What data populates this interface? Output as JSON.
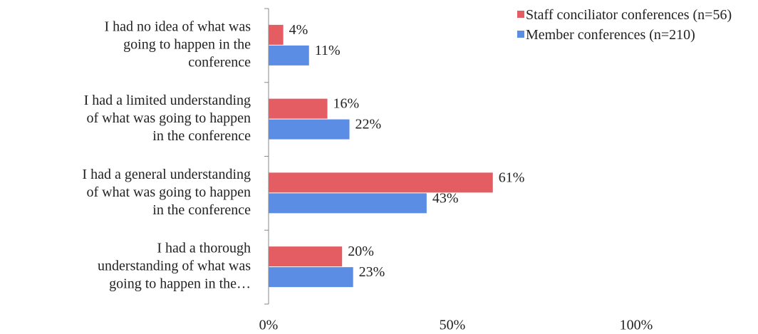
{
  "chart_data": {
    "type": "barh",
    "categories": [
      [
        "I had no idea of what was",
        "going to happen in the",
        "conference"
      ],
      [
        "I had a limited understanding",
        "of what was going to happen",
        "in the conference"
      ],
      [
        "I had a general understanding",
        "of what was going to happen",
        "in the conference"
      ],
      [
        "I had a thorough",
        "understanding of what was",
        "going to happen in the…"
      ]
    ],
    "series": [
      {
        "name": "Staff conciliator conferences (n=56)",
        "color": "#e35d63",
        "values": [
          4,
          16,
          61,
          20
        ],
        "value_labels": [
          "4%",
          "16%",
          "61%",
          "20%"
        ]
      },
      {
        "name": "Member conferences (n=210)",
        "color": "#5b8de4",
        "values": [
          11,
          22,
          43,
          23
        ],
        "value_labels": [
          "11%",
          "22%",
          "43%",
          "23%"
        ]
      }
    ],
    "xlim": [
      0,
      100
    ],
    "xticks": [
      {
        "value": 0,
        "label": "0%"
      },
      {
        "value": 50,
        "label": "50%"
      },
      {
        "value": 100,
        "label": "100%"
      }
    ],
    "legend": "right"
  }
}
